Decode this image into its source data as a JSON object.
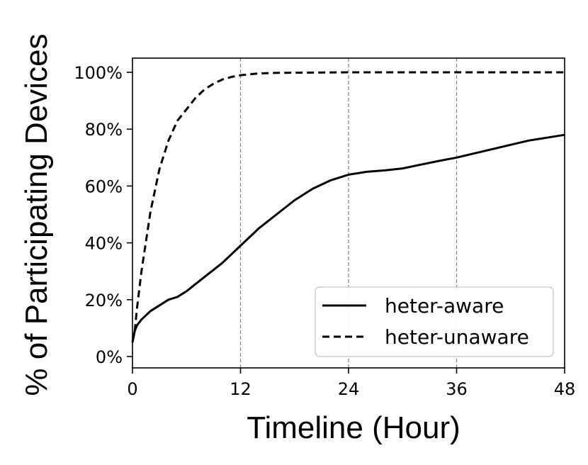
{
  "chart_data": {
    "type": "line",
    "title": "",
    "xlabel": "Timeline (Hour)",
    "ylabel": "% of Participating Devices",
    "xlim": [
      0,
      48
    ],
    "ylim": [
      -4,
      105
    ],
    "xticks": [
      0,
      12,
      24,
      36,
      48
    ],
    "xtick_labels": [
      "0",
      "12",
      "24",
      "36",
      "48"
    ],
    "yticks": [
      0,
      20,
      40,
      60,
      80,
      100
    ],
    "ytick_labels": [
      "0%",
      "20%",
      "40%",
      "60%",
      "80%",
      "100%"
    ],
    "grid": "vertical dashed lines at x ticks",
    "legend_position": "lower-right",
    "series": [
      {
        "name": "heter-aware",
        "style": "solid",
        "color": "#000000",
        "points": [
          [
            0,
            5
          ],
          [
            0.25,
            9
          ],
          [
            0.5,
            11
          ],
          [
            1,
            13
          ],
          [
            2,
            16
          ],
          [
            3,
            18
          ],
          [
            4,
            20
          ],
          [
            5,
            21
          ],
          [
            6,
            23
          ],
          [
            8,
            28
          ],
          [
            10,
            33
          ],
          [
            12,
            39
          ],
          [
            14,
            45
          ],
          [
            16,
            50
          ],
          [
            18,
            55
          ],
          [
            20,
            59
          ],
          [
            22,
            62
          ],
          [
            24,
            64
          ],
          [
            26,
            65
          ],
          [
            28,
            65.5
          ],
          [
            30,
            66.2
          ],
          [
            32,
            67.5
          ],
          [
            34,
            68.8
          ],
          [
            36,
            70
          ],
          [
            38,
            71.5
          ],
          [
            40,
            73
          ],
          [
            42,
            74.5
          ],
          [
            44,
            76
          ],
          [
            46,
            77
          ],
          [
            48,
            78
          ]
        ]
      },
      {
        "name": "heter-unaware",
        "style": "dashed",
        "color": "#000000",
        "points": [
          [
            0,
            5
          ],
          [
            0.25,
            9
          ],
          [
            0.5,
            17
          ],
          [
            1,
            30
          ],
          [
            2,
            51
          ],
          [
            3,
            66
          ],
          [
            4,
            76
          ],
          [
            5,
            83
          ],
          [
            6,
            87
          ],
          [
            7,
            91
          ],
          [
            8,
            94
          ],
          [
            9,
            96
          ],
          [
            10,
            97.5
          ],
          [
            11,
            98.4
          ],
          [
            12,
            99
          ],
          [
            14,
            99.6
          ],
          [
            16,
            99.8
          ],
          [
            20,
            99.9
          ],
          [
            24,
            100
          ],
          [
            36,
            100
          ],
          [
            48,
            100
          ]
        ]
      }
    ]
  }
}
